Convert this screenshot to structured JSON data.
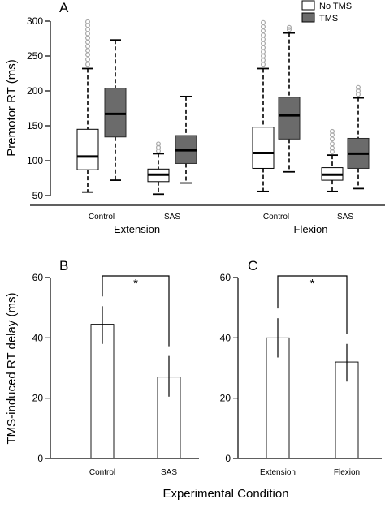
{
  "chart_data": [
    {
      "panel": "A",
      "type": "box",
      "ylabel": "Premotor RT (ms)",
      "yticks": [
        50,
        100,
        150,
        200,
        250,
        300
      ],
      "ylim": [
        50,
        300
      ],
      "legend": [
        {
          "name": "No TMS",
          "color": "#ffffff"
        },
        {
          "name": "TMS",
          "color": "#6b6b6b"
        }
      ],
      "legend_position": "top-right",
      "groups": [
        {
          "label": "Extension",
          "categories": [
            "Control",
            "SAS"
          ]
        },
        {
          "label": "Flexion",
          "categories": [
            "Control",
            "SAS"
          ]
        }
      ],
      "boxes": [
        {
          "group": "Extension",
          "category": "Control",
          "series": "No TMS",
          "whisker_low": 55,
          "q1": 87,
          "median": 106,
          "q3": 145,
          "whisker_high": 232,
          "outliers": [
            238,
            245,
            252,
            258,
            264,
            270,
            276,
            282,
            288,
            294,
            299
          ]
        },
        {
          "group": "Extension",
          "category": "Control",
          "series": "TMS",
          "whisker_low": 72,
          "q1": 134,
          "median": 167,
          "q3": 204,
          "whisker_high": 273,
          "outliers": []
        },
        {
          "group": "Extension",
          "category": "SAS",
          "series": "No TMS",
          "whisker_low": 52,
          "q1": 70,
          "median": 80,
          "q3": 88,
          "whisker_high": 110,
          "outliers": [
            114,
            119,
            124
          ]
        },
        {
          "group": "Extension",
          "category": "SAS",
          "series": "TMS",
          "whisker_low": 68,
          "q1": 96,
          "median": 115,
          "q3": 136,
          "whisker_high": 192,
          "outliers": []
        },
        {
          "group": "Flexion",
          "category": "Control",
          "series": "No TMS",
          "whisker_low": 56,
          "q1": 89,
          "median": 111,
          "q3": 148,
          "whisker_high": 232,
          "outliers": [
            238,
            244,
            250,
            256,
            262,
            268,
            274,
            280,
            286,
            292,
            298
          ]
        },
        {
          "group": "Flexion",
          "category": "Control",
          "series": "TMS",
          "whisker_low": 84,
          "q1": 131,
          "median": 165,
          "q3": 191,
          "whisker_high": 283,
          "outliers": [
            288,
            291
          ]
        },
        {
          "group": "Flexion",
          "category": "SAS",
          "series": "No TMS",
          "whisker_low": 56,
          "q1": 72,
          "median": 80,
          "q3": 90,
          "whisker_high": 108,
          "outliers": [
            113,
            118,
            124,
            131,
            137,
            142
          ]
        },
        {
          "group": "Flexion",
          "category": "SAS",
          "series": "TMS",
          "whisker_low": 60,
          "q1": 89,
          "median": 110,
          "q3": 132,
          "whisker_high": 190,
          "outliers": [
            195,
            200,
            205
          ]
        }
      ]
    },
    {
      "panel": "B",
      "type": "bar",
      "categories": [
        "Control",
        "SAS"
      ],
      "values": [
        44.5,
        27
      ],
      "error_low": [
        38,
        20.5
      ],
      "error_high": [
        50.5,
        34
      ],
      "ylim": [
        0,
        60
      ],
      "yticks": [
        0,
        20,
        40,
        60
      ],
      "significance": {
        "between": [
          "Control",
          "SAS"
        ],
        "label": "*"
      }
    },
    {
      "panel": "C",
      "type": "bar",
      "categories": [
        "Extension",
        "Flexion"
      ],
      "values": [
        40,
        32
      ],
      "error_low": [
        33.5,
        25.5
      ],
      "error_high": [
        46.5,
        38
      ],
      "ylim": [
        0,
        60
      ],
      "yticks": [
        0,
        20,
        40,
        60
      ],
      "significance": {
        "between": [
          "Extension",
          "Flexion"
        ],
        "label": "*"
      }
    }
  ],
  "shared_labels": {
    "bottom_ylabel": "TMS-induced RT delay (ms)",
    "xlabel": "Experimental Condition"
  }
}
